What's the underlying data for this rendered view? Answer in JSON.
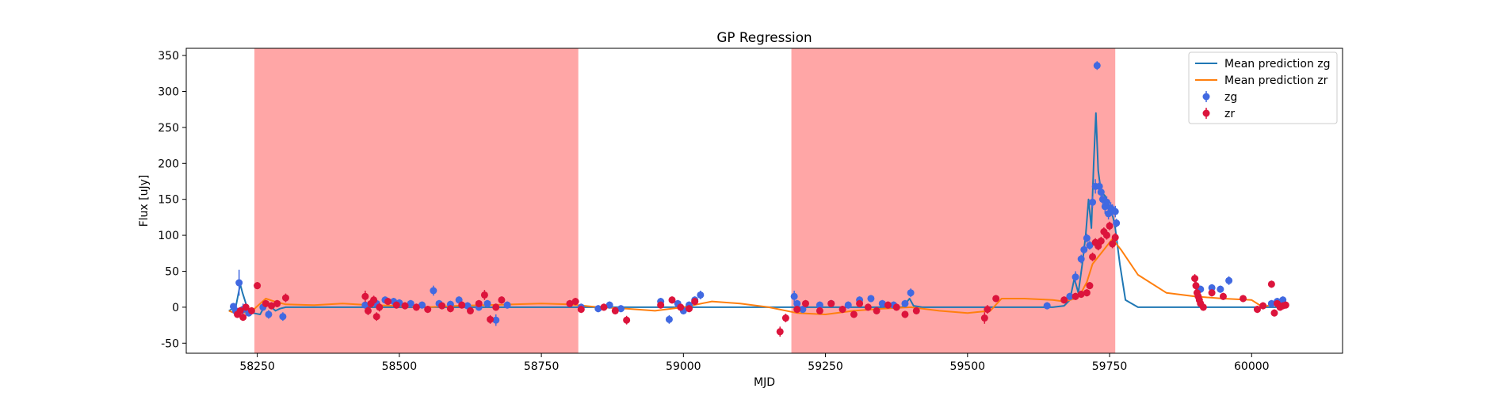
{
  "chart_data": {
    "type": "scatter",
    "title": "GP Regression",
    "xlabel": "MJD",
    "ylabel": "Flux [uJy]",
    "xlim": [
      58125,
      60160
    ],
    "ylim": [
      -64,
      360
    ],
    "xticks": [
      58250,
      58500,
      58750,
      59000,
      59250,
      59500,
      59750,
      60000
    ],
    "yticks": [
      -50,
      0,
      50,
      100,
      150,
      200,
      250,
      300,
      350
    ],
    "grid": false,
    "legend_position": "top-right",
    "shaded_regions": [
      {
        "x0": 58245,
        "x1": 58815,
        "color": "#ffa6a6"
      },
      {
        "x0": 59190,
        "x1": 59760,
        "color": "#ffa6a6"
      }
    ],
    "series": [
      {
        "name": "Mean prediction zg",
        "kind": "line",
        "color": "#1f77b4",
        "x": [
          58200,
          58212,
          58217,
          58220,
          58224,
          58232,
          58242,
          58255,
          58262,
          58268,
          58275,
          58282,
          58290,
          58300,
          58400,
          58500,
          58600,
          58700,
          58800,
          58900,
          59000,
          59100,
          59200,
          59300,
          59385,
          59392,
          59398,
          59405,
          59420,
          59500,
          59600,
          59650,
          59670,
          59680,
          59688,
          59695,
          59702,
          59708,
          59713,
          59718,
          59722,
          59726,
          59730,
          59735,
          59742,
          59750,
          59756,
          59760,
          59768,
          59778,
          59800,
          59900,
          59950,
          60000,
          60050,
          60060
        ],
        "y": [
          -5,
          0,
          20,
          32,
          20,
          0,
          -8,
          -10,
          0,
          8,
          0,
          -5,
          -2,
          0,
          0,
          0,
          0,
          0,
          0,
          0,
          0,
          0,
          0,
          0,
          0,
          6,
          12,
          2,
          0,
          0,
          0,
          0,
          2,
          10,
          40,
          20,
          60,
          100,
          150,
          110,
          200,
          270,
          190,
          160,
          155,
          140,
          125,
          110,
          60,
          10,
          0,
          0,
          0,
          0,
          0,
          0
        ]
      },
      {
        "name": "Mean prediction zr",
        "kind": "line",
        "color": "#ff7f0e",
        "x": [
          58200,
          58210,
          58220,
          58235,
          58248,
          58265,
          58280,
          58300,
          58350,
          58400,
          58450,
          58500,
          58550,
          58600,
          58650,
          58700,
          58750,
          58800,
          58850,
          58900,
          58950,
          59000,
          59050,
          59100,
          59150,
          59200,
          59250,
          59300,
          59350,
          59400,
          59450,
          59500,
          59540,
          59560,
          59600,
          59650,
          59670,
          59690,
          59700,
          59710,
          59720,
          59740,
          59755,
          59770,
          59800,
          59850,
          59900,
          59950,
          60000,
          60020,
          60040,
          60060
        ],
        "y": [
          -5,
          -8,
          -5,
          -10,
          0,
          12,
          8,
          4,
          3,
          5,
          3,
          2,
          0,
          2,
          3,
          4,
          5,
          4,
          0,
          -2,
          -5,
          0,
          8,
          5,
          0,
          -8,
          -10,
          -5,
          -2,
          0,
          -5,
          -8,
          -5,
          12,
          12,
          10,
          8,
          12,
          20,
          35,
          60,
          80,
          95,
          80,
          45,
          20,
          15,
          12,
          10,
          0,
          5,
          5
        ]
      },
      {
        "name": "zg",
        "kind": "scatter",
        "color": "#4169e1",
        "points": [
          [
            58208,
            1,
            5
          ],
          [
            58212,
            -5,
            6
          ],
          [
            58218,
            34,
            18
          ],
          [
            58225,
            -3,
            8
          ],
          [
            58235,
            -8,
            5
          ],
          [
            58260,
            0,
            5
          ],
          [
            58270,
            -10,
            6
          ],
          [
            58295,
            -13,
            6
          ],
          [
            58440,
            3,
            5
          ],
          [
            58460,
            5,
            5
          ],
          [
            58475,
            10,
            5
          ],
          [
            58490,
            8,
            5
          ],
          [
            58500,
            6,
            5
          ],
          [
            58520,
            5,
            5
          ],
          [
            58540,
            3,
            5
          ],
          [
            58560,
            23,
            7
          ],
          [
            58570,
            5,
            5
          ],
          [
            58590,
            4,
            5
          ],
          [
            58605,
            10,
            5
          ],
          [
            58620,
            2,
            5
          ],
          [
            58640,
            0,
            5
          ],
          [
            58655,
            5,
            5
          ],
          [
            58670,
            -18,
            8
          ],
          [
            58690,
            3,
            5
          ],
          [
            58820,
            0,
            5
          ],
          [
            58850,
            -2,
            5
          ],
          [
            58870,
            3,
            5
          ],
          [
            58890,
            -2,
            5
          ],
          [
            58960,
            8,
            5
          ],
          [
            58975,
            -17,
            6
          ],
          [
            58990,
            5,
            5
          ],
          [
            59000,
            -5,
            5
          ],
          [
            59010,
            3,
            5
          ],
          [
            59020,
            10,
            5
          ],
          [
            59030,
            17,
            6
          ],
          [
            59195,
            15,
            8
          ],
          [
            59200,
            5,
            5
          ],
          [
            59210,
            -3,
            5
          ],
          [
            59240,
            3,
            5
          ],
          [
            59260,
            5,
            5
          ],
          [
            59290,
            3,
            5
          ],
          [
            59310,
            10,
            5
          ],
          [
            59330,
            12,
            5
          ],
          [
            59350,
            5,
            5
          ],
          [
            59370,
            3,
            5
          ],
          [
            59390,
            5,
            5
          ],
          [
            59400,
            20,
            6
          ],
          [
            59640,
            2,
            5
          ],
          [
            59680,
            15,
            5
          ],
          [
            59690,
            42,
            8
          ],
          [
            59700,
            67,
            6
          ],
          [
            59705,
            80,
            6
          ],
          [
            59710,
            96,
            6
          ],
          [
            59715,
            86,
            6
          ],
          [
            59720,
            146,
            8
          ],
          [
            59725,
            168,
            10
          ],
          [
            59728,
            336,
            6
          ],
          [
            59732,
            168,
            8
          ],
          [
            59735,
            160,
            10
          ],
          [
            59738,
            150,
            10
          ],
          [
            59742,
            140,
            10
          ],
          [
            59745,
            146,
            8
          ],
          [
            59748,
            130,
            8
          ],
          [
            59752,
            138,
            8
          ],
          [
            59755,
            135,
            8
          ],
          [
            59760,
            133,
            8
          ],
          [
            59762,
            117,
            6
          ],
          [
            59910,
            25,
            5
          ],
          [
            59930,
            27,
            5
          ],
          [
            59945,
            25,
            5
          ],
          [
            59960,
            37,
            6
          ],
          [
            60035,
            5,
            5
          ],
          [
            60045,
            8,
            5
          ],
          [
            60055,
            10,
            5
          ]
        ]
      },
      {
        "name": "zr",
        "kind": "scatter",
        "color": "#dc143c",
        "points": [
          [
            58215,
            -10,
            5
          ],
          [
            58220,
            -5,
            5
          ],
          [
            58225,
            -14,
            5
          ],
          [
            58230,
            0,
            5
          ],
          [
            58240,
            -5,
            5
          ],
          [
            58250,
            30,
            5
          ],
          [
            58265,
            5,
            5
          ],
          [
            58275,
            2,
            5
          ],
          [
            58285,
            5,
            5
          ],
          [
            58300,
            13,
            6
          ],
          [
            58440,
            15,
            8
          ],
          [
            58445,
            -5,
            6
          ],
          [
            58450,
            5,
            6
          ],
          [
            58455,
            10,
            6
          ],
          [
            58460,
            -13,
            6
          ],
          [
            58465,
            0,
            6
          ],
          [
            58480,
            8,
            5
          ],
          [
            58495,
            3,
            5
          ],
          [
            58510,
            2,
            5
          ],
          [
            58530,
            0,
            5
          ],
          [
            58550,
            -3,
            5
          ],
          [
            58575,
            2,
            5
          ],
          [
            58590,
            -2,
            5
          ],
          [
            58610,
            3,
            5
          ],
          [
            58625,
            -5,
            5
          ],
          [
            58640,
            5,
            5
          ],
          [
            58650,
            17,
            7
          ],
          [
            58660,
            -17,
            6
          ],
          [
            58670,
            0,
            5
          ],
          [
            58680,
            10,
            5
          ],
          [
            58800,
            5,
            5
          ],
          [
            58810,
            8,
            5
          ],
          [
            58820,
            -3,
            5
          ],
          [
            58860,
            0,
            5
          ],
          [
            58880,
            -5,
            5
          ],
          [
            58900,
            -18,
            6
          ],
          [
            58960,
            3,
            5
          ],
          [
            58980,
            10,
            5
          ],
          [
            58995,
            0,
            5
          ],
          [
            59010,
            -2,
            5
          ],
          [
            59020,
            8,
            5
          ],
          [
            59170,
            -34,
            7
          ],
          [
            59180,
            -15,
            6
          ],
          [
            59200,
            -3,
            5
          ],
          [
            59215,
            5,
            5
          ],
          [
            59240,
            -5,
            5
          ],
          [
            59260,
            5,
            5
          ],
          [
            59280,
            -3,
            5
          ],
          [
            59300,
            -10,
            5
          ],
          [
            59310,
            5,
            5
          ],
          [
            59325,
            0,
            5
          ],
          [
            59340,
            -5,
            5
          ],
          [
            59360,
            3,
            5
          ],
          [
            59375,
            0,
            5
          ],
          [
            59390,
            -10,
            5
          ],
          [
            59410,
            -5,
            5
          ],
          [
            59530,
            -15,
            8
          ],
          [
            59535,
            -3,
            6
          ],
          [
            59550,
            12,
            5
          ],
          [
            59670,
            10,
            5
          ],
          [
            59690,
            15,
            5
          ],
          [
            59700,
            18,
            5
          ],
          [
            59710,
            20,
            5
          ],
          [
            59715,
            30,
            5
          ],
          [
            59720,
            70,
            6
          ],
          [
            59725,
            90,
            6
          ],
          [
            59730,
            85,
            6
          ],
          [
            59735,
            92,
            6
          ],
          [
            59740,
            105,
            6
          ],
          [
            59745,
            100,
            6
          ],
          [
            59750,
            113,
            6
          ],
          [
            59755,
            88,
            6
          ],
          [
            59760,
            97,
            6
          ],
          [
            59900,
            40,
            6
          ],
          [
            59902,
            30,
            8
          ],
          [
            59904,
            20,
            6
          ],
          [
            59906,
            15,
            6
          ],
          [
            59908,
            10,
            6
          ],
          [
            59910,
            5,
            6
          ],
          [
            59915,
            0,
            5
          ],
          [
            59930,
            20,
            5
          ],
          [
            59950,
            15,
            5
          ],
          [
            59985,
            12,
            5
          ],
          [
            60010,
            -3,
            5
          ],
          [
            60020,
            2,
            5
          ],
          [
            60035,
            32,
            5
          ],
          [
            60040,
            -8,
            5
          ],
          [
            60045,
            5,
            5
          ],
          [
            60050,
            0,
            5
          ],
          [
            60055,
            2,
            5
          ],
          [
            60060,
            3,
            5
          ]
        ]
      }
    ]
  }
}
